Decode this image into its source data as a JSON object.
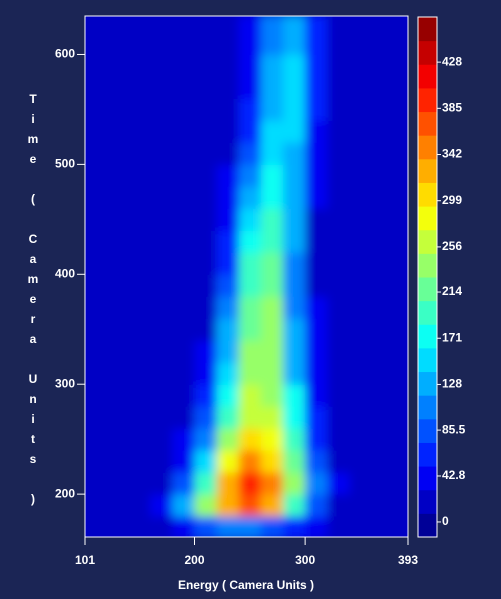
{
  "chart_data": {
    "type": "heatmap",
    "x_label": "Energy ( Camera Units )",
    "y_label": "Time ( Camera Units )",
    "xlim": [
      101,
      393
    ],
    "xticks": [
      101,
      200,
      300,
      393
    ],
    "ylim": [
      161,
      635
    ],
    "yticks": [
      200,
      300,
      400,
      500,
      600
    ],
    "zlim": [
      -14,
      470
    ],
    "zticks": [
      0,
      42.8,
      85.5,
      128,
      171,
      214,
      256,
      299,
      342,
      385,
      428
    ],
    "colormap": "jet",
    "levels": 22,
    "x_edges": [
      101,
      120,
      140,
      160,
      180,
      200,
      220,
      240,
      260,
      280,
      300,
      320,
      340,
      360,
      380,
      393
    ],
    "y_edges": [
      161,
      180,
      200,
      220,
      240,
      260,
      280,
      300,
      320,
      340,
      360,
      380,
      400,
      420,
      440,
      460,
      480,
      500,
      520,
      540,
      560,
      580,
      600,
      635
    ],
    "z": [
      [
        10,
        10,
        10,
        15,
        40,
        80,
        100,
        100,
        90,
        70,
        40,
        20,
        12,
        10,
        10
      ],
      [
        12,
        12,
        15,
        40,
        130,
        240,
        330,
        380,
        320,
        200,
        80,
        30,
        15,
        12,
        10
      ],
      [
        12,
        12,
        15,
        25,
        80,
        200,
        330,
        400,
        340,
        230,
        100,
        35,
        18,
        12,
        12
      ],
      [
        12,
        12,
        15,
        20,
        50,
        150,
        280,
        350,
        300,
        220,
        90,
        30,
        15,
        12,
        12
      ],
      [
        12,
        12,
        15,
        20,
        35,
        110,
        230,
        300,
        280,
        200,
        70,
        25,
        15,
        12,
        12
      ],
      [
        12,
        12,
        15,
        18,
        30,
        80,
        200,
        270,
        260,
        180,
        60,
        25,
        15,
        12,
        12
      ],
      [
        12,
        12,
        15,
        18,
        25,
        60,
        180,
        260,
        250,
        170,
        50,
        22,
        15,
        12,
        12
      ],
      [
        12,
        12,
        14,
        18,
        22,
        45,
        160,
        250,
        240,
        140,
        40,
        20,
        15,
        12,
        12
      ],
      [
        12,
        12,
        14,
        16,
        20,
        35,
        140,
        240,
        230,
        130,
        35,
        20,
        15,
        12,
        12
      ],
      [
        12,
        12,
        14,
        16,
        20,
        30,
        120,
        220,
        230,
        120,
        35,
        20,
        14,
        12,
        12
      ],
      [
        12,
        12,
        14,
        16,
        18,
        28,
        100,
        210,
        230,
        110,
        32,
        18,
        14,
        12,
        12
      ],
      [
        12,
        12,
        14,
        16,
        18,
        25,
        90,
        200,
        220,
        100,
        30,
        18,
        14,
        12,
        12
      ],
      [
        12,
        12,
        14,
        16,
        18,
        22,
        70,
        190,
        210,
        110,
        30,
        18,
        14,
        12,
        12
      ],
      [
        12,
        12,
        14,
        16,
        18,
        20,
        60,
        170,
        200,
        120,
        30,
        18,
        14,
        12,
        12
      ],
      [
        12,
        12,
        14,
        16,
        18,
        20,
        50,
        150,
        190,
        120,
        30,
        18,
        14,
        12,
        12
      ],
      [
        12,
        12,
        14,
        16,
        18,
        20,
        40,
        130,
        180,
        130,
        35,
        18,
        14,
        12,
        12
      ],
      [
        12,
        12,
        14,
        16,
        18,
        20,
        35,
        110,
        170,
        130,
        40,
        18,
        14,
        12,
        12
      ],
      [
        12,
        12,
        14,
        16,
        18,
        20,
        30,
        90,
        160,
        140,
        45,
        18,
        14,
        12,
        12
      ],
      [
        12,
        12,
        14,
        16,
        18,
        20,
        28,
        70,
        150,
        150,
        50,
        18,
        14,
        12,
        12
      ],
      [
        12,
        12,
        14,
        16,
        18,
        20,
        25,
        60,
        140,
        150,
        55,
        20,
        14,
        12,
        12
      ],
      [
        12,
        12,
        14,
        16,
        18,
        20,
        22,
        50,
        130,
        150,
        60,
        20,
        14,
        12,
        12
      ],
      [
        12,
        12,
        14,
        16,
        18,
        20,
        22,
        45,
        120,
        150,
        65,
        20,
        14,
        12,
        12
      ],
      [
        12,
        12,
        14,
        16,
        18,
        20,
        22,
        40,
        110,
        140,
        70,
        22,
        14,
        12,
        12
      ]
    ]
  }
}
